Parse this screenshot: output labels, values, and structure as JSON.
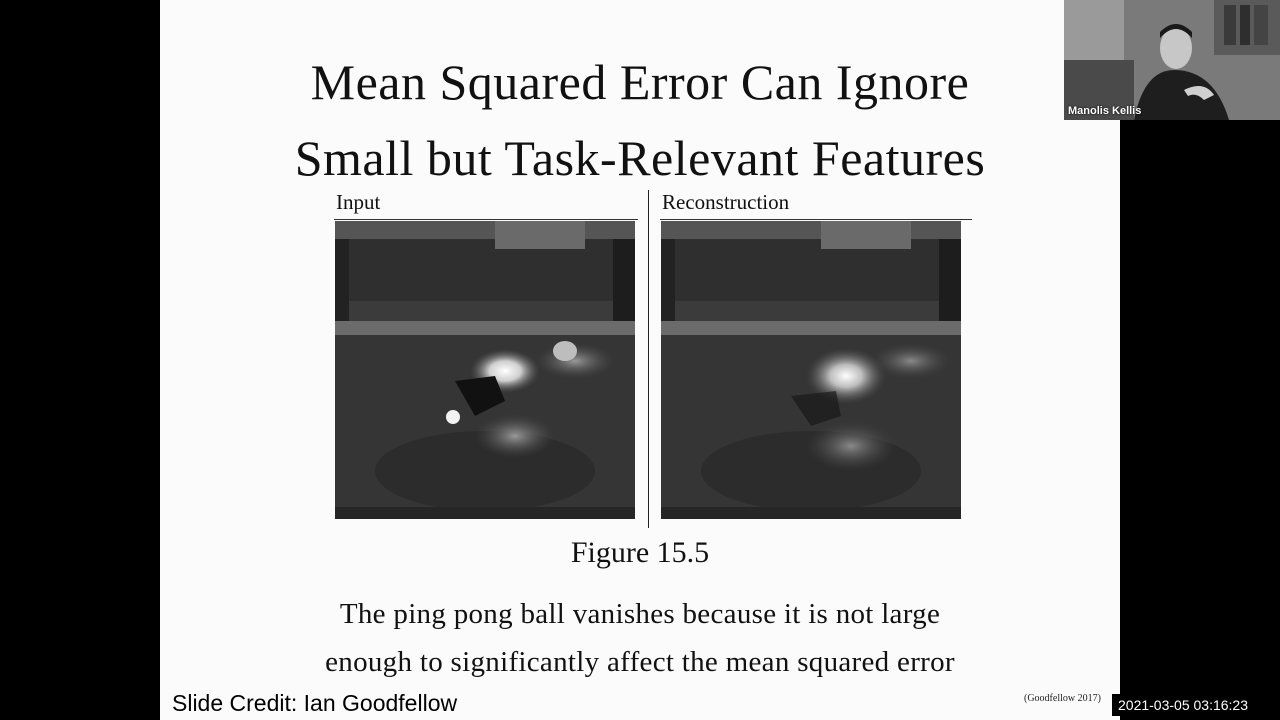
{
  "slide": {
    "title_line1": "Mean Squared Error Can Ignore",
    "title_line2": "Small but Task-Relevant Features",
    "input_label": "Input",
    "reconstruction_label": "Reconstruction",
    "figure_label": "Figure 15.5",
    "description_line1": "The ping pong ball vanishes because it is not large",
    "description_line2": "enough to significantly affect the mean squared error",
    "citation": "(Goodfellow 2017)"
  },
  "overlay": {
    "slide_credit": "Slide Credit: Ian Goodfellow",
    "timestamp": "2021-03-05 03:16:23"
  },
  "webcam": {
    "participant_name": "Manolis Kellis"
  }
}
